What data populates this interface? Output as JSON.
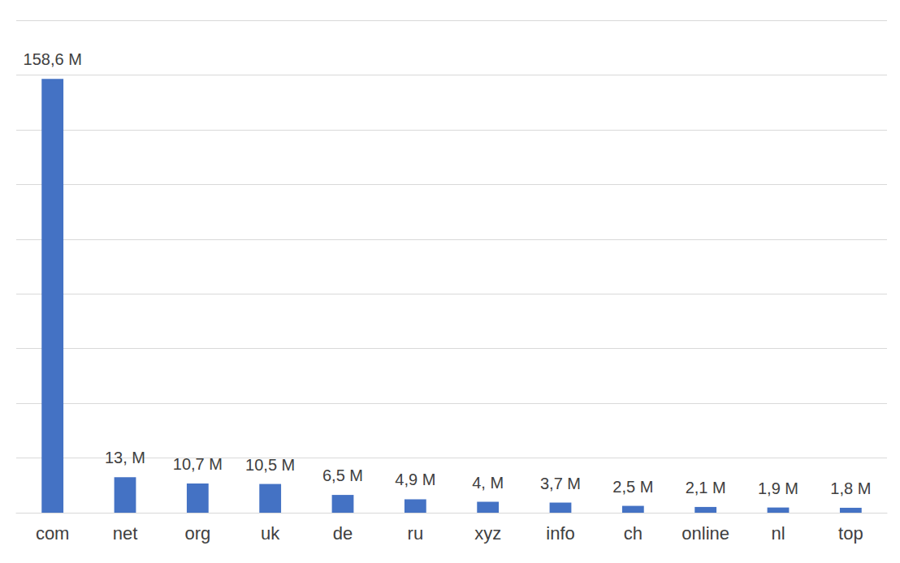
{
  "chart_data": {
    "type": "bar",
    "categories": [
      "com",
      "net",
      "org",
      "uk",
      "de",
      "ru",
      "xyz",
      "info",
      "ch",
      "online",
      "nl",
      "top"
    ],
    "values": [
      158.6,
      13,
      10.7,
      10.5,
      6.5,
      4.9,
      4,
      3.7,
      2.5,
      2.1,
      1.9,
      1.8
    ],
    "value_labels": [
      "158,6 M",
      "13, M",
      "10,7 M",
      "10,5 M",
      "6,5 M",
      "4,9 M",
      "4, M",
      "3,7 M",
      "2,5 M",
      "2,1 M",
      "1,9 M",
      "1,8 M"
    ],
    "color": "#4472c4",
    "ylim": [
      0,
      180
    ],
    "yticks": [
      0,
      20,
      40,
      60,
      80,
      100,
      120,
      140,
      160,
      180
    ],
    "grid": true,
    "data_labels": true,
    "tick_labels": "x"
  }
}
